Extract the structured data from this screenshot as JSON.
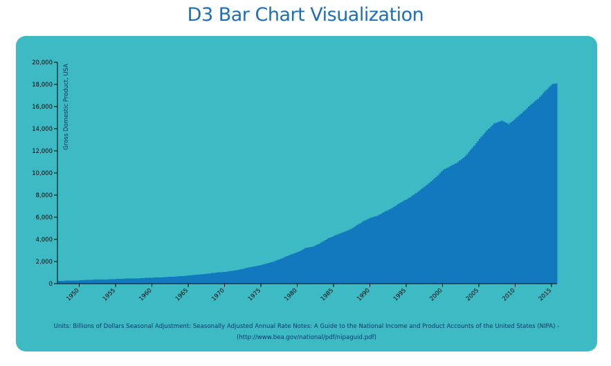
{
  "page": {
    "title": "D3 Bar Chart Visualization"
  },
  "notes": {
    "line1": "Units: Billions of Dollars Seasonal Adjustment: Seasonally Adjusted Annual Rate Notes: A Guide to the National Income and Product Accounts of the United States (NIPA) -",
    "line2": "(http://www.bea.gov/national/pdf/nipaguid.pdf)"
  },
  "colors": {
    "page_background": "#ffffff",
    "title": "#1f6fb6",
    "card_background": "#3dbac3",
    "bar": "#1279bf",
    "notes_text": "#10386a"
  },
  "chart_data": {
    "type": "bar",
    "title": "",
    "xlabel": "",
    "ylabel": "Gross Domestic Product, USA",
    "xlim": [
      1947.0,
      2015.75
    ],
    "ylim": [
      0,
      20000
    ],
    "grid": false,
    "legend": "none",
    "x_ticks": [
      1950,
      1955,
      1960,
      1965,
      1970,
      1975,
      1980,
      1985,
      1990,
      1995,
      2000,
      2005,
      2010,
      2015
    ],
    "y_ticks": [
      0,
      2000,
      4000,
      6000,
      8000,
      10000,
      12000,
      14000,
      16000,
      18000,
      20000
    ],
    "y_tick_labels": [
      "0",
      "2,000",
      "4,000",
      "6,000",
      "8,000",
      "10,000",
      "12,000",
      "14,000",
      "16,000",
      "18,000",
      "20,000"
    ],
    "bar_interval": "quarterly",
    "series": [
      {
        "x": [
          1947,
          1948,
          1949,
          1950,
          1951,
          1952,
          1953,
          1954,
          1955,
          1956,
          1957,
          1958,
          1959,
          1960,
          1961,
          1962,
          1963,
          1964,
          1965,
          1966,
          1967,
          1968,
          1969,
          1970,
          1971,
          1972,
          1973,
          1974,
          1975,
          1976,
          1977,
          1978,
          1979,
          1980,
          1981,
          1982,
          1983,
          1984,
          1985,
          1986,
          1987,
          1988,
          1989,
          1990,
          1991,
          1992,
          1993,
          1994,
          1995,
          1996,
          1997,
          1998,
          1999,
          2000,
          2001,
          2002,
          2003,
          2004,
          2005,
          2006,
          2007,
          2008,
          2009,
          2010,
          2011,
          2012,
          2013,
          2014,
          2015,
          2015.5
        ],
        "values": [
          243,
          270,
          272,
          300,
          347,
          367,
          389,
          391,
          426,
          450,
          474,
          482,
          522,
          543,
          563,
          605,
          638,
          686,
          743,
          815,
          861,
          942,
          1019,
          1075,
          1168,
          1282,
          1429,
          1549,
          1689,
          1878,
          2086,
          2357,
          2632,
          2863,
          3210,
          3345,
          3638,
          4040,
          4339,
          4580,
          4855,
          5236,
          5642,
          5963,
          6158,
          6520,
          6859,
          7287,
          7640,
          8073,
          8578,
          9063,
          9631,
          10285,
          10622,
          10978,
          11511,
          12275,
          13094,
          13856,
          14478,
          14719,
          14419,
          14964,
          15518,
          16155,
          16692,
          17393,
          18037,
          18100
        ]
      }
    ]
  }
}
